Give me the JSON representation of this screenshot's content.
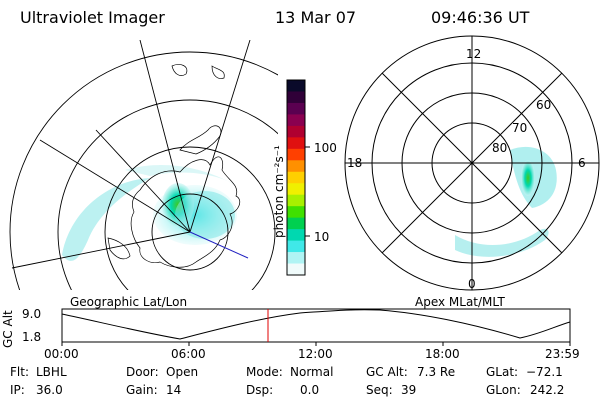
{
  "header": {
    "instrument": "Ultraviolet Imager",
    "date": "13 Mar 07",
    "time": "09:46:36 UT"
  },
  "colorbar": {
    "unit_label": "photon cm⁻²s⁻¹",
    "ticks": [
      "100",
      "10"
    ],
    "colors_top_to_bottom": [
      "#0a0a2a",
      "#300038",
      "#5a0050",
      "#8a0050",
      "#b00030",
      "#e01010",
      "#ff4000",
      "#ff9000",
      "#ffd000",
      "#f0f000",
      "#a8f000",
      "#40e000",
      "#00d050",
      "#00d8b0",
      "#40e8e8",
      "#b0f4f4",
      "#f0fbfb"
    ]
  },
  "geo_panel": {
    "label": "Geographic Lat/Lon"
  },
  "mlt_panel": {
    "label": "Apex MLat/MLT",
    "mlt_labels": {
      "top": "12",
      "left": "18",
      "right": "6",
      "bottom": "0"
    },
    "lat_labels": [
      "60",
      "70",
      "80"
    ]
  },
  "altitude_plot": {
    "ylabel": "GC Alt",
    "yticks": [
      "9.0",
      "1.8"
    ],
    "xticks": [
      "00:00",
      "06:00",
      "12:00",
      "18:00",
      "23:59"
    ],
    "current_time_marker": "09:46:36",
    "marker_color": "#e00000"
  },
  "footer": {
    "row1": [
      {
        "label": "Flt:",
        "value": "LBHL"
      },
      {
        "label": "Door:",
        "value": "Open"
      },
      {
        "label": "Mode:",
        "value": "Normal"
      },
      {
        "label": "GC Alt:",
        "value": "7.3 Re"
      },
      {
        "label": "GLat:",
        "value": "−72.1"
      }
    ],
    "row2": [
      {
        "label": "IP:",
        "value": "36.0"
      },
      {
        "label": "Gain:",
        "value": "14"
      },
      {
        "label": "Dsp:",
        "value": "0.0"
      },
      {
        "label": "Seq:",
        "value": "39"
      },
      {
        "label": "GLon:",
        "value": "242.2"
      }
    ]
  }
}
